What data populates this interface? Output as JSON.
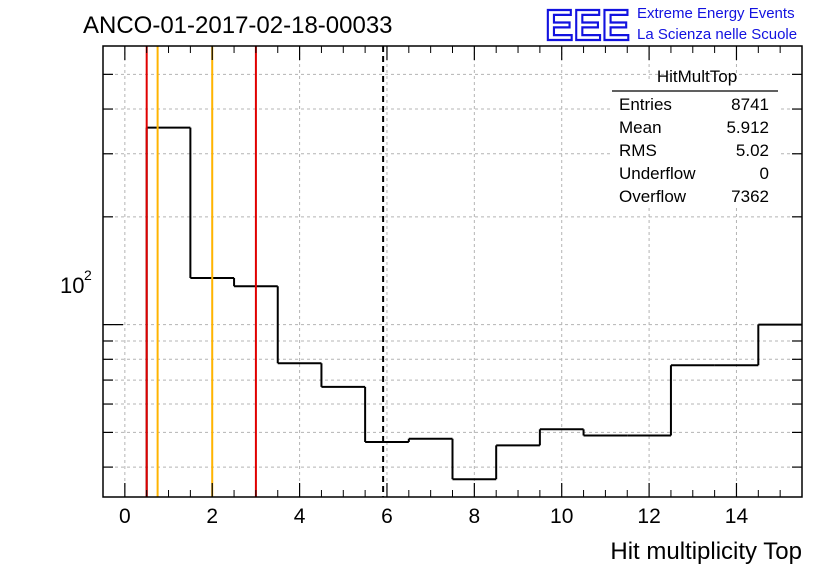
{
  "chart_data": {
    "type": "histogram",
    "title": "ANCO-01-2017-02-18-00033",
    "xlabel": "Hit multiplicity Top",
    "ylabel": "",
    "yscale": "log",
    "xlim": [
      -0.5,
      15.5
    ],
    "ylim": [
      33,
      600
    ],
    "grid": true,
    "x_ticks": [
      "0",
      "2",
      "4",
      "6",
      "8",
      "10",
      "12",
      "14"
    ],
    "y_tick_label": {
      "base": "10",
      "exp": "2"
    },
    "bin_edges": [
      0.5,
      1.5,
      2.5,
      3.5,
      4.5,
      5.5,
      6.5,
      7.5,
      8.5,
      9.5,
      10.5,
      11.5,
      12.5,
      13.5,
      14.5,
      15.5
    ],
    "bin_values": [
      355,
      135,
      128,
      78,
      67,
      47,
      48,
      37,
      46,
      51,
      49,
      49,
      77,
      77,
      100
    ],
    "reference_lines": [
      {
        "x": 0.5,
        "color": "#e00000",
        "style": "solid"
      },
      {
        "x": 0.75,
        "color": "#ffb400",
        "style": "solid"
      },
      {
        "x": 2.0,
        "color": "#ffb400",
        "style": "solid"
      },
      {
        "x": 3.0,
        "color": "#e00000",
        "style": "solid"
      },
      {
        "x": 5.912,
        "color": "#000000",
        "style": "dashed"
      }
    ],
    "stats_box": {
      "title": "HitMultTop",
      "rows": [
        {
          "label": "Entries",
          "value": "8741"
        },
        {
          "label": "Mean",
          "value": "5.912"
        },
        {
          "label": "RMS",
          "value": "5.02"
        },
        {
          "label": "Underflow",
          "value": "0"
        },
        {
          "label": "Overflow",
          "value": "7362"
        }
      ]
    },
    "colors": {
      "histogram": "#000000",
      "grid": "#b4b4b4",
      "logo": "#1212e0"
    }
  },
  "logo": {
    "mark": "EEE",
    "line1": "Extreme Energy Events",
    "line2": "La Scienza nelle Scuole"
  }
}
